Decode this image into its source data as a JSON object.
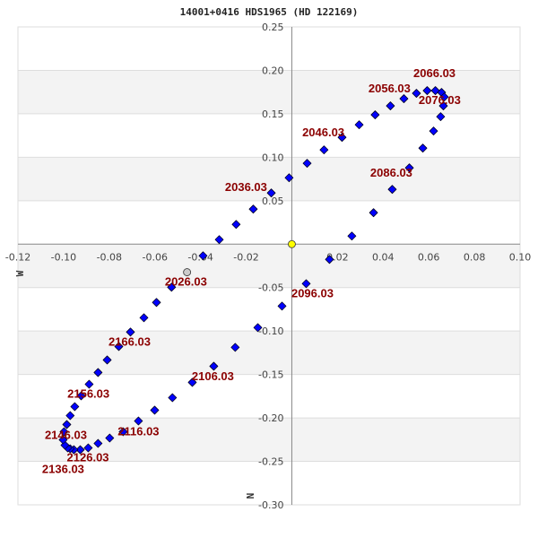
{
  "chart_data": {
    "type": "scatter",
    "title": "14001+0416 HDS1965 (HD 122169)",
    "xlabel": "W",
    "ylabel": "N",
    "xlim": [
      -0.12,
      0.1
    ],
    "ylim": [
      -0.3,
      0.25
    ],
    "x_ticks": [
      "-0.12",
      "-0.10",
      "-0.08",
      "-0.06",
      "-0.04",
      "-0.02",
      "0.02",
      "0.04",
      "0.06",
      "0.08",
      "0.10"
    ],
    "x_tick_values": [
      -0.12,
      -0.1,
      -0.08,
      -0.06,
      -0.04,
      -0.02,
      0.02,
      0.04,
      0.06,
      0.08,
      0.1
    ],
    "y_ticks": [
      "0.25",
      "0.20",
      "0.15",
      "0.10",
      "0.05",
      "-0.05",
      "-0.10",
      "-0.15",
      "-0.20",
      "-0.25",
      "-0.30"
    ],
    "y_tick_values": [
      0.25,
      0.2,
      0.15,
      0.1,
      0.05,
      -0.05,
      -0.1,
      -0.15,
      -0.2,
      -0.25,
      -0.3
    ],
    "bands": [
      [
        0.2,
        0.15
      ],
      [
        0.1,
        0.05
      ],
      [
        0,
        -0.05
      ],
      [
        -0.1,
        -0.15
      ],
      [
        -0.2,
        -0.25
      ]
    ],
    "colors": {
      "orbit_point": "#0000ff",
      "label": "#8b0000",
      "primary": "#ffff00",
      "observation": "#cccccc",
      "band": "#f3f3f3",
      "grid": "#dddddd"
    },
    "primary": {
      "x": 0,
      "y": 0
    },
    "observation": {
      "x": -0.0459,
      "y": -0.0323
    },
    "orbit_points": [
      [
        -0.0527,
        -0.0496
      ],
      [
        -0.0389,
        -0.0134
      ],
      [
        -0.0318,
        0.0052
      ],
      [
        -0.0244,
        0.0227
      ],
      [
        -0.0169,
        0.0403
      ],
      [
        -0.009,
        0.0589
      ],
      [
        -0.0012,
        0.0764
      ],
      [
        0.0067,
        0.093
      ],
      [
        0.0141,
        0.1085
      ],
      [
        0.022,
        0.1229
      ],
      [
        0.0295,
        0.1374
      ],
      [
        0.0365,
        0.1488
      ],
      [
        0.0432,
        0.1591
      ],
      [
        0.0491,
        0.1674
      ],
      [
        0.0546,
        0.1736
      ],
      [
        0.0593,
        0.1767
      ],
      [
        0.0629,
        0.1767
      ],
      [
        0.0656,
        0.1746
      ],
      [
        0.0668,
        0.1694
      ],
      [
        0.0664,
        0.1591
      ],
      [
        0.0652,
        0.1467
      ],
      [
        0.0621,
        0.1302
      ],
      [
        0.0574,
        0.1105
      ],
      [
        0.0515,
        0.0878
      ],
      [
        0.044,
        0.063
      ],
      [
        0.0358,
        0.0362
      ],
      [
        0.0263,
        0.0093
      ],
      [
        0.0165,
        -0.0176
      ],
      [
        0.0063,
        -0.0455
      ],
      [
        -0.0043,
        -0.0713
      ],
      [
        -0.0149,
        -0.0961
      ],
      [
        -0.0248,
        -0.1188
      ],
      [
        -0.0342,
        -0.1405
      ],
      [
        -0.0436,
        -0.1591
      ],
      [
        -0.0523,
        -0.1767
      ],
      [
        -0.0601,
        -0.1911
      ],
      [
        -0.0672,
        -0.2035
      ],
      [
        -0.0739,
        -0.2159
      ],
      [
        -0.0798,
        -0.2231
      ],
      [
        -0.0849,
        -0.2293
      ],
      [
        -0.0892,
        -0.2345
      ],
      [
        -0.0927,
        -0.2366
      ],
      [
        -0.0955,
        -0.2366
      ],
      [
        -0.0971,
        -0.2355
      ],
      [
        -0.0982,
        -0.2345
      ],
      [
        -0.0994,
        -0.2314
      ],
      [
        -0.1002,
        -0.2252
      ],
      [
        -0.0998,
        -0.2159
      ],
      [
        -0.0986,
        -0.2076
      ],
      [
        -0.0971,
        -0.1973
      ],
      [
        -0.0951,
        -0.187
      ],
      [
        -0.0923,
        -0.1746
      ],
      [
        -0.0888,
        -0.1612
      ],
      [
        -0.0849,
        -0.1477
      ],
      [
        -0.0809,
        -0.1333
      ],
      [
        -0.0758,
        -0.1178
      ],
      [
        -0.0707,
        -0.1012
      ],
      [
        -0.0648,
        -0.0847
      ],
      [
        -0.0593,
        -0.0671
      ]
    ],
    "annotations": [
      {
        "text": "2026.03",
        "x": -0.0464,
        "y": -0.0475
      },
      {
        "text": "2036.03",
        "x": -0.0177,
        "y": 0.0568
      },
      {
        "text": "2046.03",
        "x": 0.0138,
        "y": 0.124
      },
      {
        "text": "2056.03",
        "x": 0.0428,
        "y": 0.1746
      },
      {
        "text": "2066.03",
        "x": 0.0625,
        "y": 0.1921
      },
      {
        "text": "2076.03",
        "x": 0.0648,
        "y": 0.1612
      },
      {
        "text": "2086.03",
        "x": 0.0436,
        "y": 0.0775
      },
      {
        "text": "2096.03",
        "x": 0.0059,
        "y": -0.061
      },
      {
        "text": "2106.03",
        "x": -0.0346,
        "y": -0.1564
      },
      {
        "text": "2116.03",
        "x": -0.0672,
        "y": -0.22
      },
      {
        "text": "2126.03",
        "x": -0.0917,
        "y": -0.25
      },
      {
        "text": "2136.03",
        "x": -0.0994,
        "y": -0.249
      },
      {
        "text": "2146.03",
        "x": -0.099,
        "y": -0.2242
      },
      {
        "text": "2156.03",
        "x": -0.0891,
        "y": -0.1767
      },
      {
        "text": "2166.03",
        "x": -0.0711,
        "y": -0.1168
      }
    ]
  }
}
